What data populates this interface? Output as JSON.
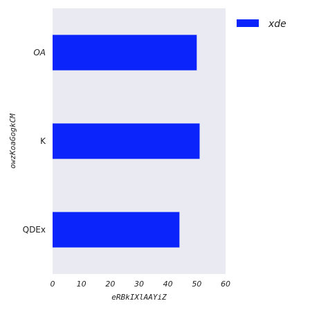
{
  "chart_data": {
    "type": "bar",
    "orientation": "horizontal",
    "categories": [
      "OA",
      "K",
      "QDEx"
    ],
    "category_label_styles": [
      "italic",
      "normal",
      "normal"
    ],
    "series": [
      {
        "name": "xde",
        "values": [
          50,
          51,
          44
        ],
        "color": "#0b24fb"
      }
    ],
    "xlabel": "eRBkIXlAAYiZ",
    "ylabel": "owzKoaGogkCM",
    "xlim": [
      0,
      60
    ],
    "xticks": [
      0,
      10,
      20,
      30,
      40,
      50,
      60
    ],
    "grid": false,
    "legend_position": "top-right",
    "plot_background": "#eaeaf2"
  }
}
